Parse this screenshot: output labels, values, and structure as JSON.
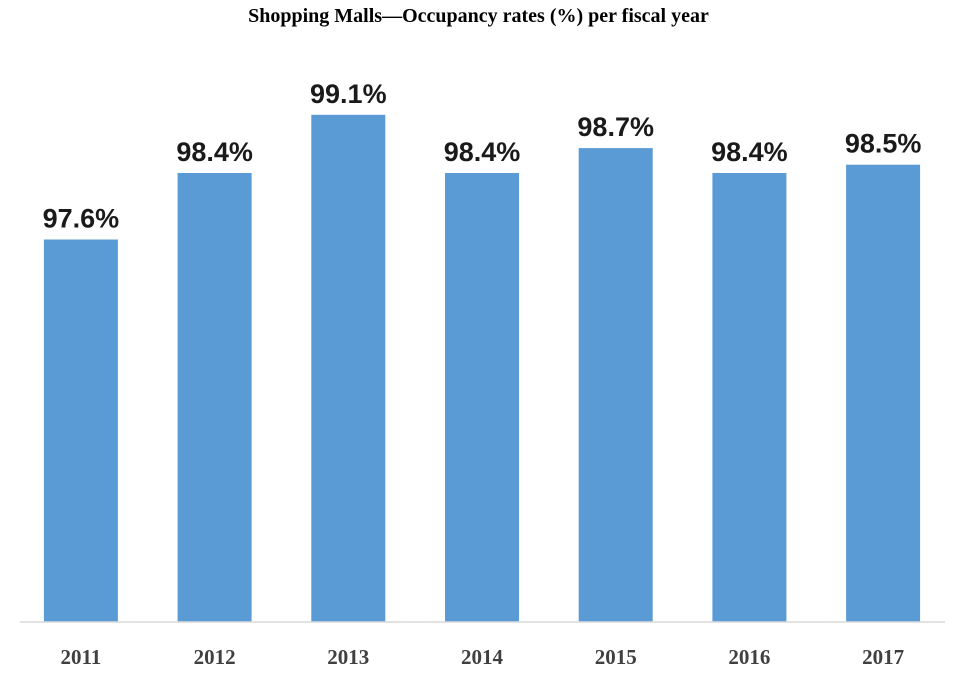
{
  "chart_data": {
    "type": "bar",
    "title": "Shopping Malls—Occupancy rates (%) per fiscal year",
    "categories": [
      "2011",
      "2012",
      "2013",
      "2014",
      "2015",
      "2016",
      "2017"
    ],
    "values": [
      97.6,
      98.4,
      99.1,
      98.4,
      98.7,
      98.4,
      98.5
    ],
    "data_labels": [
      "97.6%",
      "98.4%",
      "99.1%",
      "98.4%",
      "98.7%",
      "98.4%",
      "98.5%"
    ],
    "ylim": [
      93.0,
      100.0
    ],
    "grid": false,
    "legend": "none",
    "colors": {
      "bar": "#5b9bd5",
      "axis": "#d9d9d9"
    }
  }
}
